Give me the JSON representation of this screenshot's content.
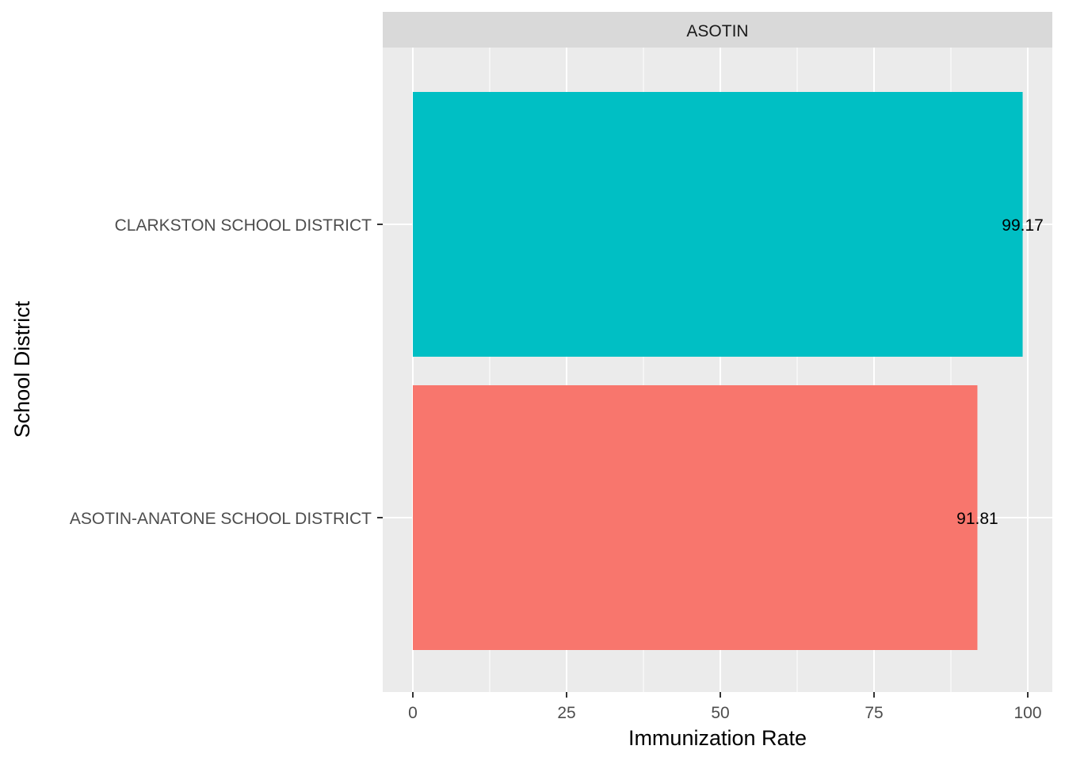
{
  "chart_data": {
    "type": "bar",
    "orientation": "horizontal",
    "facet": "ASOTIN",
    "categories": [
      "CLARKSTON SCHOOL DISTRICT",
      "ASOTIN-ANATONE SCHOOL DISTRICT"
    ],
    "values": [
      99.17,
      91.81
    ],
    "data_labels": [
      "99.17",
      "91.81"
    ],
    "colors": [
      "#00BFC4",
      "#F8766D"
    ],
    "xlabel": "Immunization Rate",
    "ylabel": "School District",
    "xlim": [
      0,
      100
    ],
    "xticks": [
      0,
      25,
      50,
      75,
      100
    ],
    "xtick_labels": [
      "0",
      "25",
      "50",
      "75",
      "100"
    ],
    "grid": true,
    "legend": "none",
    "panel_background": "#EBEBEB",
    "strip_background": "#D9D9D9"
  }
}
